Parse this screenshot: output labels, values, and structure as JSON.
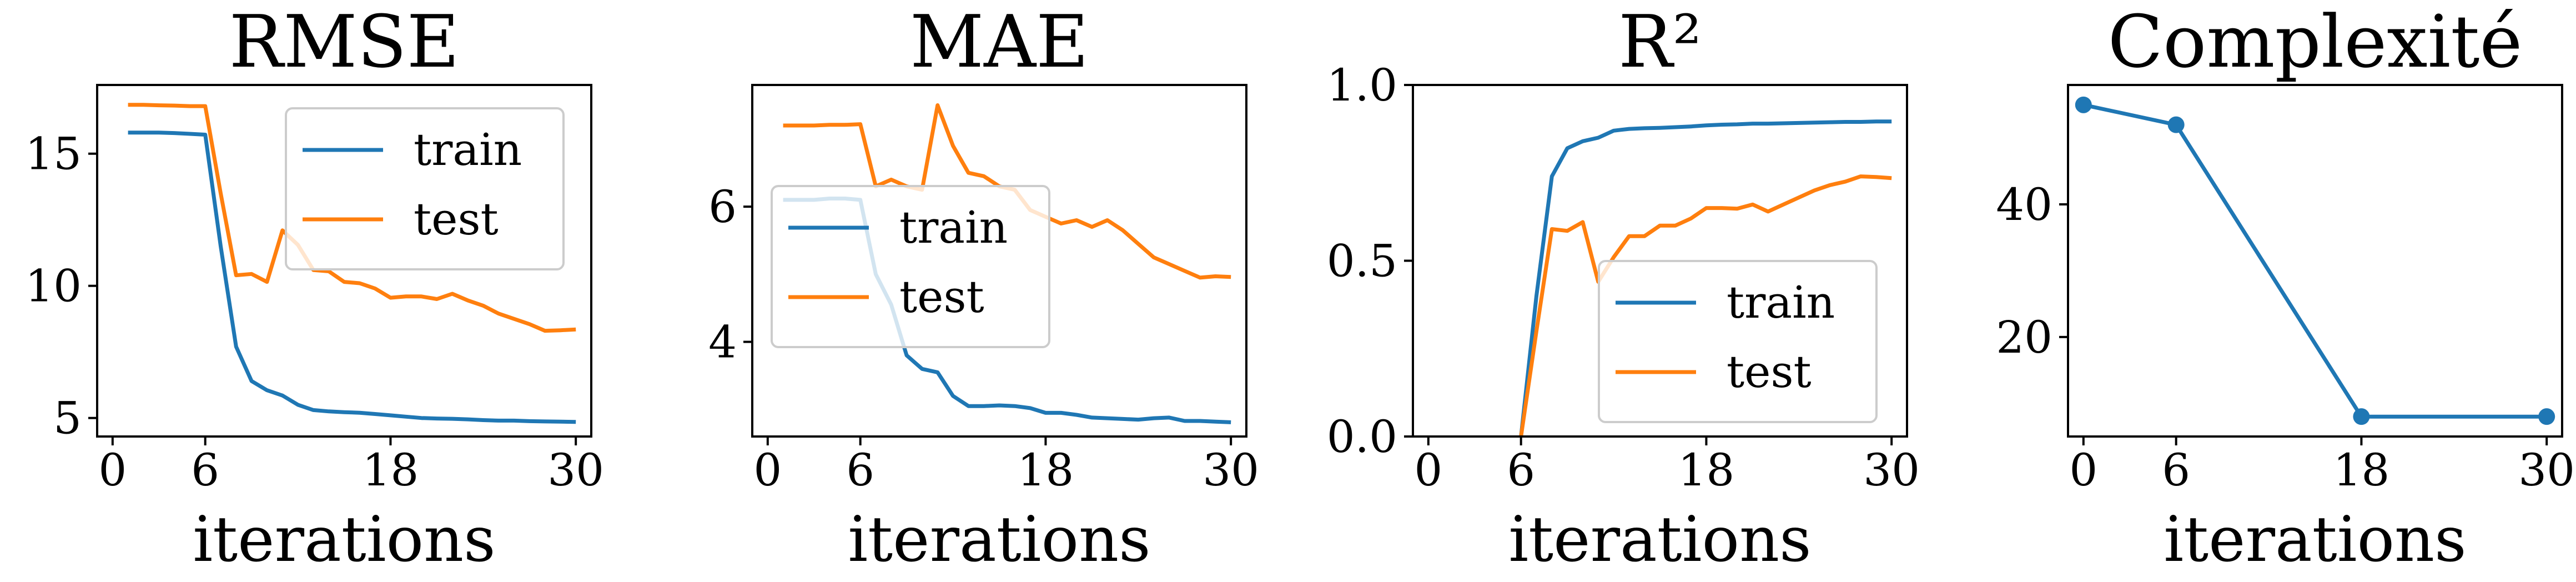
{
  "chart_data": [
    {
      "type": "line",
      "title": "RMSE",
      "xlabel": "iterations",
      "xlim": [
        -1,
        31
      ],
      "ylim": [
        4.3,
        17.6
      ],
      "xticks": [
        0,
        6,
        18,
        30
      ],
      "yticks": [
        5,
        10,
        15
      ],
      "ytick_labels": [
        "5",
        "10",
        "15"
      ],
      "grid": false,
      "legend": "top-right",
      "series": [
        {
          "name": "train",
          "color": "#1f77b4",
          "x": [
            1,
            2,
            3,
            4,
            5,
            6,
            7,
            8,
            9,
            10,
            11,
            12,
            13,
            14,
            15,
            16,
            17,
            18,
            19,
            20,
            21,
            22,
            23,
            24,
            25,
            26,
            27,
            28,
            29,
            30
          ],
          "y": [
            15.8,
            15.8,
            15.8,
            15.78,
            15.75,
            15.72,
            11.5,
            7.7,
            6.4,
            6.05,
            5.85,
            5.5,
            5.3,
            5.25,
            5.22,
            5.2,
            5.15,
            5.1,
            5.05,
            5.0,
            4.98,
            4.97,
            4.95,
            4.92,
            4.9,
            4.9,
            4.88,
            4.87,
            4.86,
            4.85
          ]
        },
        {
          "name": "test",
          "color": "#ff7f0e",
          "x": [
            1,
            2,
            3,
            4,
            5,
            6,
            7,
            8,
            9,
            10,
            11,
            12,
            13,
            14,
            15,
            16,
            17,
            18,
            19,
            20,
            21,
            22,
            23,
            24,
            25,
            26,
            27,
            28,
            29,
            30
          ],
          "y": [
            16.85,
            16.85,
            16.83,
            16.82,
            16.8,
            16.8,
            13.5,
            10.4,
            10.45,
            10.15,
            12.1,
            11.55,
            10.6,
            10.55,
            10.15,
            10.1,
            9.9,
            9.55,
            9.6,
            9.6,
            9.5,
            9.7,
            9.45,
            9.25,
            8.95,
            8.75,
            8.55,
            8.3,
            8.32,
            8.35
          ]
        }
      ]
    },
    {
      "type": "line",
      "title": "MAE",
      "xlabel": "iterations",
      "xlim": [
        -1,
        31
      ],
      "ylim": [
        2.6,
        7.8
      ],
      "xticks": [
        0,
        6,
        18,
        30
      ],
      "yticks": [
        4,
        6
      ],
      "ytick_labels": [
        "4",
        "6"
      ],
      "grid": false,
      "legend": "center-left",
      "series": [
        {
          "name": "train",
          "color": "#1f77b4",
          "x": [
            1,
            2,
            3,
            4,
            5,
            6,
            7,
            8,
            9,
            10,
            11,
            12,
            13,
            14,
            15,
            16,
            17,
            18,
            19,
            20,
            21,
            22,
            23,
            24,
            25,
            26,
            27,
            28,
            29,
            30
          ],
          "y": [
            6.1,
            6.1,
            6.1,
            6.12,
            6.12,
            6.1,
            5.0,
            4.55,
            3.8,
            3.6,
            3.55,
            3.2,
            3.05,
            3.05,
            3.06,
            3.05,
            3.02,
            2.95,
            2.95,
            2.92,
            2.88,
            2.87,
            2.86,
            2.85,
            2.87,
            2.88,
            2.83,
            2.83,
            2.82,
            2.81
          ]
        },
        {
          "name": "test",
          "color": "#ff7f0e",
          "x": [
            1,
            2,
            3,
            4,
            5,
            6,
            7,
            8,
            9,
            10,
            11,
            12,
            13,
            14,
            15,
            16,
            17,
            18,
            19,
            20,
            21,
            22,
            23,
            24,
            25,
            26,
            27,
            28,
            29,
            30
          ],
          "y": [
            7.2,
            7.2,
            7.2,
            7.21,
            7.21,
            7.22,
            6.3,
            6.4,
            6.3,
            6.25,
            7.5,
            6.9,
            6.5,
            6.45,
            6.3,
            6.25,
            5.95,
            5.85,
            5.75,
            5.8,
            5.7,
            5.8,
            5.65,
            5.45,
            5.25,
            5.15,
            5.05,
            4.95,
            4.97,
            4.96
          ]
        }
      ]
    },
    {
      "type": "line",
      "title": "R²",
      "xlabel": "iterations",
      "xlim": [
        -1,
        31
      ],
      "ylim": [
        0.0,
        1.0
      ],
      "xticks": [
        0,
        6,
        18,
        30
      ],
      "yticks": [
        0.0,
        0.5,
        1.0
      ],
      "ytick_labels": [
        "0.0",
        "0.5",
        "1.0"
      ],
      "grid": false,
      "legend": "bottom-right",
      "series": [
        {
          "name": "train",
          "color": "#1f77b4",
          "x": [
            6,
            7,
            8,
            9,
            10,
            11,
            12,
            13,
            14,
            15,
            16,
            17,
            18,
            19,
            20,
            21,
            22,
            23,
            24,
            25,
            26,
            27,
            28,
            29,
            30
          ],
          "y": [
            0.0,
            0.4,
            0.74,
            0.82,
            0.84,
            0.85,
            0.87,
            0.875,
            0.877,
            0.878,
            0.88,
            0.882,
            0.885,
            0.887,
            0.888,
            0.89,
            0.89,
            0.891,
            0.892,
            0.893,
            0.894,
            0.895,
            0.895,
            0.896,
            0.896
          ]
        },
        {
          "name": "test",
          "color": "#ff7f0e",
          "x": [
            6,
            7,
            8,
            9,
            10,
            11,
            12,
            13,
            14,
            15,
            16,
            17,
            18,
            19,
            20,
            21,
            22,
            23,
            24,
            25,
            26,
            27,
            28,
            29,
            30
          ],
          "y": [
            0.0,
            0.3,
            0.59,
            0.585,
            0.61,
            0.44,
            0.51,
            0.57,
            0.57,
            0.6,
            0.6,
            0.62,
            0.65,
            0.65,
            0.648,
            0.66,
            0.64,
            0.66,
            0.68,
            0.7,
            0.715,
            0.725,
            0.74,
            0.738,
            0.735
          ]
        }
      ]
    },
    {
      "type": "line",
      "title": "Complexité",
      "xlabel": "iterations",
      "xlim": [
        -1,
        31
      ],
      "ylim": [
        5,
        58
      ],
      "xticks": [
        0,
        6,
        18,
        30
      ],
      "yticks": [
        20,
        40
      ],
      "ytick_labels": [
        "20",
        "40"
      ],
      "grid": false,
      "legend": "",
      "series": [
        {
          "color": "#1f77b4",
          "markers": true,
          "x": [
            0,
            6,
            18,
            30
          ],
          "y": [
            55,
            52,
            8,
            8
          ]
        }
      ]
    }
  ]
}
